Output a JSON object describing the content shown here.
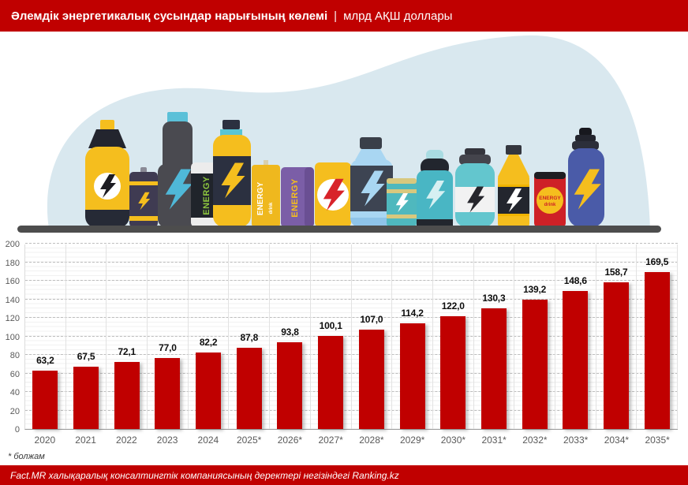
{
  "header": {
    "title_bold": "Әлемдік энергетикалық сусындар нарығының көлемі",
    "separator": "|",
    "title_units": "млрд АҚШ доллары"
  },
  "footnote": "* болжам",
  "footer": {
    "source": "Fact.MR халықаралық консалтингтік компаниясының деректері негізіндегі Ranking.kz"
  },
  "colors": {
    "accent_red": "#C00000",
    "bar_red": "#C00000",
    "blob_blue": "#D9E8EF",
    "shelf_gray": "#4D4D4D"
  },
  "illustration": {
    "name": "energy-drinks-shelf",
    "can_labels": {
      "green_can": "ENERGY",
      "yellow_pack_line1": "ENERGY",
      "yellow_pack_line2": "drink",
      "purple_can": "ENERGY",
      "red_can_line1": "ENERGY",
      "red_can_line2": "drink"
    }
  },
  "chart_data": {
    "type": "bar",
    "title": "Әлемдік энергетикалық сусындар нарығының көлемі, млрд АҚШ доллары",
    "xlabel": "",
    "ylabel": "",
    "categories": [
      "2020",
      "2021",
      "2022",
      "2023",
      "2024",
      "2025*",
      "2026*",
      "2027*",
      "2028*",
      "2029*",
      "2030*",
      "2031*",
      "2032*",
      "2033*",
      "2034*",
      "2035*"
    ],
    "values": [
      63.2,
      67.5,
      72.1,
      77.0,
      82.2,
      87.8,
      93.8,
      100.1,
      107.0,
      114.2,
      122.0,
      130.3,
      139.2,
      148.6,
      158.7,
      169.5
    ],
    "labels": [
      "63,2",
      "67,5",
      "72,1",
      "77,0",
      "82,2",
      "87,8",
      "93,8",
      "100,1",
      "107,0",
      "114,2",
      "122,0",
      "130,3",
      "139,2",
      "148,6",
      "158,7",
      "169,5"
    ],
    "ylim": [
      0,
      200
    ],
    "yticks": [
      0,
      20,
      40,
      60,
      80,
      100,
      120,
      140,
      160,
      180,
      200
    ],
    "grid": "horizontal major dashed every 20, light minor every 5, light vertical category separators",
    "legend": "none",
    "bar_color": "#C00000"
  }
}
